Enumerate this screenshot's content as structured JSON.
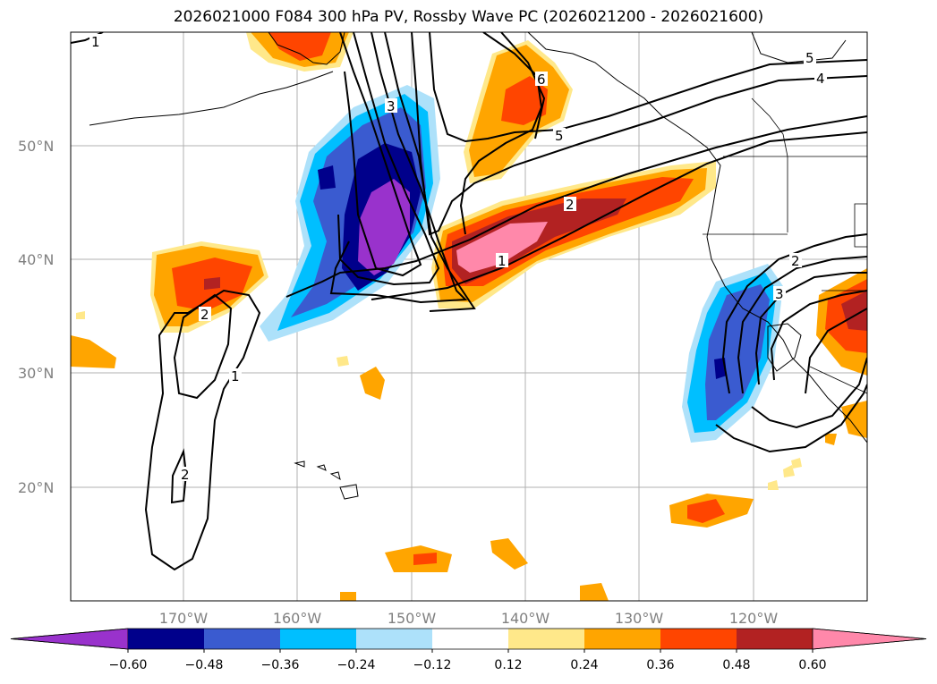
{
  "title": "2026021000 F084 300 hPa PV, Rossby Wave PC (2026021200 - 2026021600)",
  "lat_labels": [
    "50°N",
    "40°N",
    "30°N",
    "20°N"
  ],
  "lon_labels": [
    "170°W",
    "160°W",
    "150°W",
    "140°W",
    "130°W",
    "120°W"
  ],
  "colorbar": {
    "ticks": [
      "−0.60",
      "−0.48",
      "−0.36",
      "−0.24",
      "−0.12",
      "0.12",
      "0.24",
      "0.36",
      "0.48",
      "0.60"
    ],
    "colors": [
      "#9932CC",
      "#00008B",
      "#3A5BD0",
      "#00BFFF",
      "#ADE1FA",
      "#FFFFFF",
      "#FFE88A",
      "#FFA500",
      "#FF4500",
      "#B22222",
      "#FF88AA"
    ]
  },
  "contour_labels": [
    "1",
    "2",
    "3",
    "4",
    "5",
    "6"
  ]
}
